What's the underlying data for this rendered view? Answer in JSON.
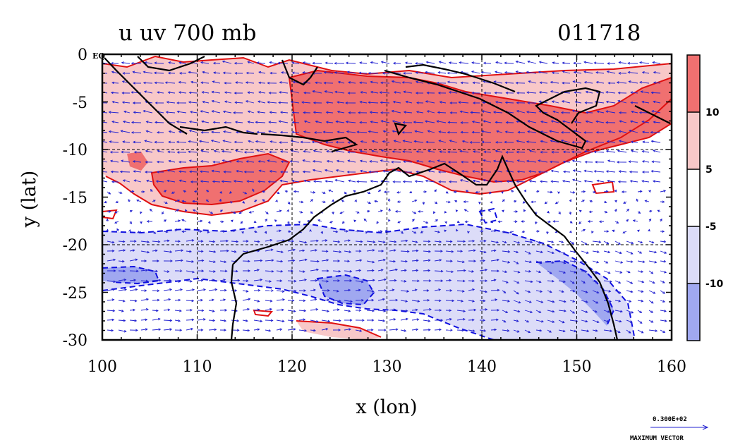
{
  "title_left": "u uv 700 mb",
  "title_right": "011718",
  "x_axis": {
    "label": "x (lon)",
    "min": 100,
    "max": 160,
    "ticks": [
      "100",
      "110",
      "120",
      "130",
      "140",
      "150",
      "160"
    ]
  },
  "y_axis": {
    "label": "y (lat)",
    "min": -30,
    "max": 0,
    "ticks": [
      "0",
      "-5",
      "-10",
      "-15",
      "-20",
      "-25",
      "-30"
    ],
    "eq_label": "EQ"
  },
  "colorbar": {
    "labels": [
      "10",
      "5",
      "-5",
      "-10"
    ],
    "colors": [
      "#f07070",
      "#f8c8c8",
      "#ffffff",
      "#dcdcf8",
      "#a0a8f0"
    ]
  },
  "max_vector": {
    "value": "0.300E+02",
    "label": "MAXIMUM VECTOR"
  },
  "colors": {
    "strong_positive": "#f07070",
    "positive": "#f8c8c8",
    "negative": "#dcdcf8",
    "strong_negative": "#a0a8f0",
    "vector": "#2020d0",
    "contour_pos": "#e01010",
    "contour_neg": "#1010e0",
    "coast": "#000000"
  }
}
